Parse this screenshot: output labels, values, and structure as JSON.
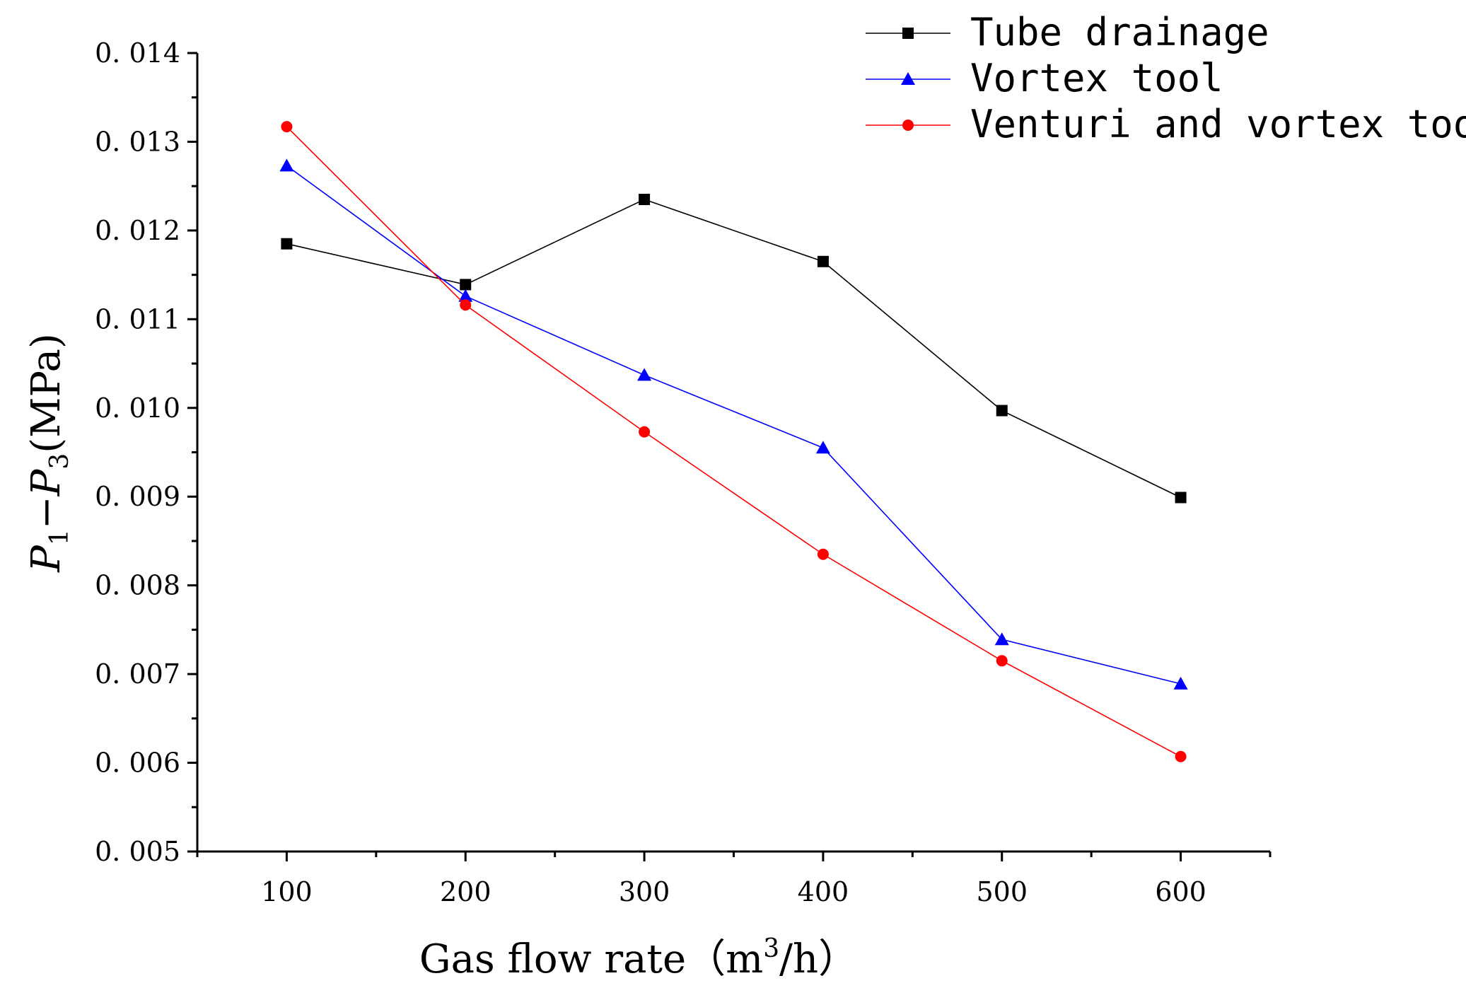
{
  "chart_data": {
    "type": "line",
    "xlabel": "Gas flow rate（m³/h）",
    "xlabel_parts": {
      "main": "Gas flow rate（m",
      "sup": "3",
      "tail": "/h）"
    },
    "ylabel": "P1−P3(MPa)",
    "ylabel_parts": {
      "p1": "P",
      "sub1": "1",
      "dash": "−",
      "p3": "P",
      "sub3": "3",
      "unit": "(MPa)"
    },
    "x": [
      100,
      200,
      300,
      400,
      500,
      600
    ],
    "x_tick_labels": [
      "100",
      "200",
      "300",
      "400",
      "500",
      "600"
    ],
    "xlim": [
      50,
      650
    ],
    "ylim": [
      0.005,
      0.014
    ],
    "y_ticks": [
      0.005,
      0.006,
      0.007,
      0.008,
      0.009,
      0.01,
      0.011,
      0.012,
      0.013,
      0.014
    ],
    "y_tick_labels": [
      "0. 005",
      "0. 006",
      "0. 007",
      "0. 008",
      "0. 009",
      "0. 010",
      "0. 011",
      "0. 012",
      "0. 013",
      "0. 014"
    ],
    "legend_position": "top-right",
    "series": [
      {
        "name": "Tube drainage",
        "color": "#000000",
        "marker": "square",
        "values": [
          0.01185,
          0.01139,
          0.01235,
          0.01165,
          0.00997,
          0.00899
        ]
      },
      {
        "name": "Vortex tool",
        "color": "#0000ff",
        "marker": "triangle",
        "values": [
          0.01273,
          0.01126,
          0.01037,
          0.00955,
          0.00739,
          0.00689
        ]
      },
      {
        "name": "Venturi and vortex tool",
        "color": "#ff0000",
        "marker": "circle",
        "values": [
          0.01317,
          0.01116,
          0.00973,
          0.00835,
          0.00715,
          0.00607
        ]
      }
    ]
  }
}
